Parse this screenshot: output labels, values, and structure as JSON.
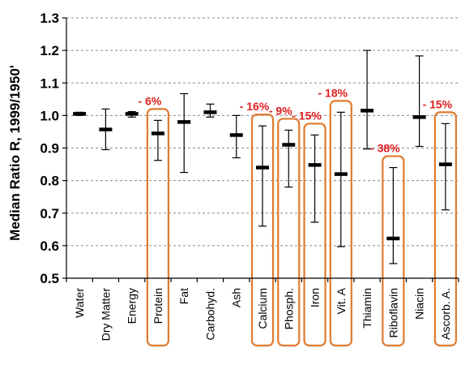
{
  "chart_data": {
    "type": "errorbar",
    "ylabel": "Median Ratio R, 1999/1950'",
    "ylim": [
      0.5,
      1.3
    ],
    "yticks": [
      0.5,
      0.6,
      0.7,
      0.8,
      0.9,
      1.0,
      1.1,
      1.2,
      1.3
    ],
    "ytick_labels": [
      "0.5",
      "0.6",
      "0.7",
      "0.8",
      "0.9",
      "1.0",
      "1.1",
      "1.2",
      "1.3"
    ],
    "grid": "dashed horizontal",
    "categories": [
      "Water",
      "Dry Matter",
      "Energy",
      "Protein",
      "Fat",
      "Carbohyd.",
      "Ash",
      "Calcium",
      "Phosph.",
      "Iron",
      "Vit. A",
      "Thiamin",
      "Riboflavin",
      "Niacin",
      "Ascorb. A."
    ],
    "median": [
      1.005,
      0.957,
      1.005,
      0.945,
      0.98,
      1.01,
      0.94,
      0.84,
      0.91,
      0.848,
      0.82,
      1.015,
      0.622,
      0.995,
      0.85
    ],
    "low": [
      1.0,
      0.895,
      0.995,
      0.862,
      0.825,
      0.995,
      0.87,
      0.66,
      0.78,
      0.672,
      0.597,
      0.897,
      0.545,
      0.905,
      0.71
    ],
    "high": [
      1.01,
      1.02,
      1.012,
      0.985,
      1.067,
      1.035,
      1.0,
      0.968,
      0.955,
      0.94,
      1.01,
      1.2,
      0.84,
      1.183,
      0.975
    ],
    "highlighted": [
      {
        "category": "Protein",
        "label": "- 6%"
      },
      {
        "category": "Calcium",
        "label": "- 16%"
      },
      {
        "category": "Phosph.",
        "label": "- 9%"
      },
      {
        "category": "Iron",
        "label": "- 15%"
      },
      {
        "category": "Vit. A",
        "label": "- 18%"
      },
      {
        "category": "Riboflavin",
        "label": "- 38%"
      },
      {
        "category": "Ascorb. A.",
        "label": "- 15%"
      }
    ],
    "colors": {
      "highlight_box": "#e07a2e",
      "highlight_text": "#e01e1e",
      "bars": "#000000",
      "grid": "#888888"
    }
  }
}
